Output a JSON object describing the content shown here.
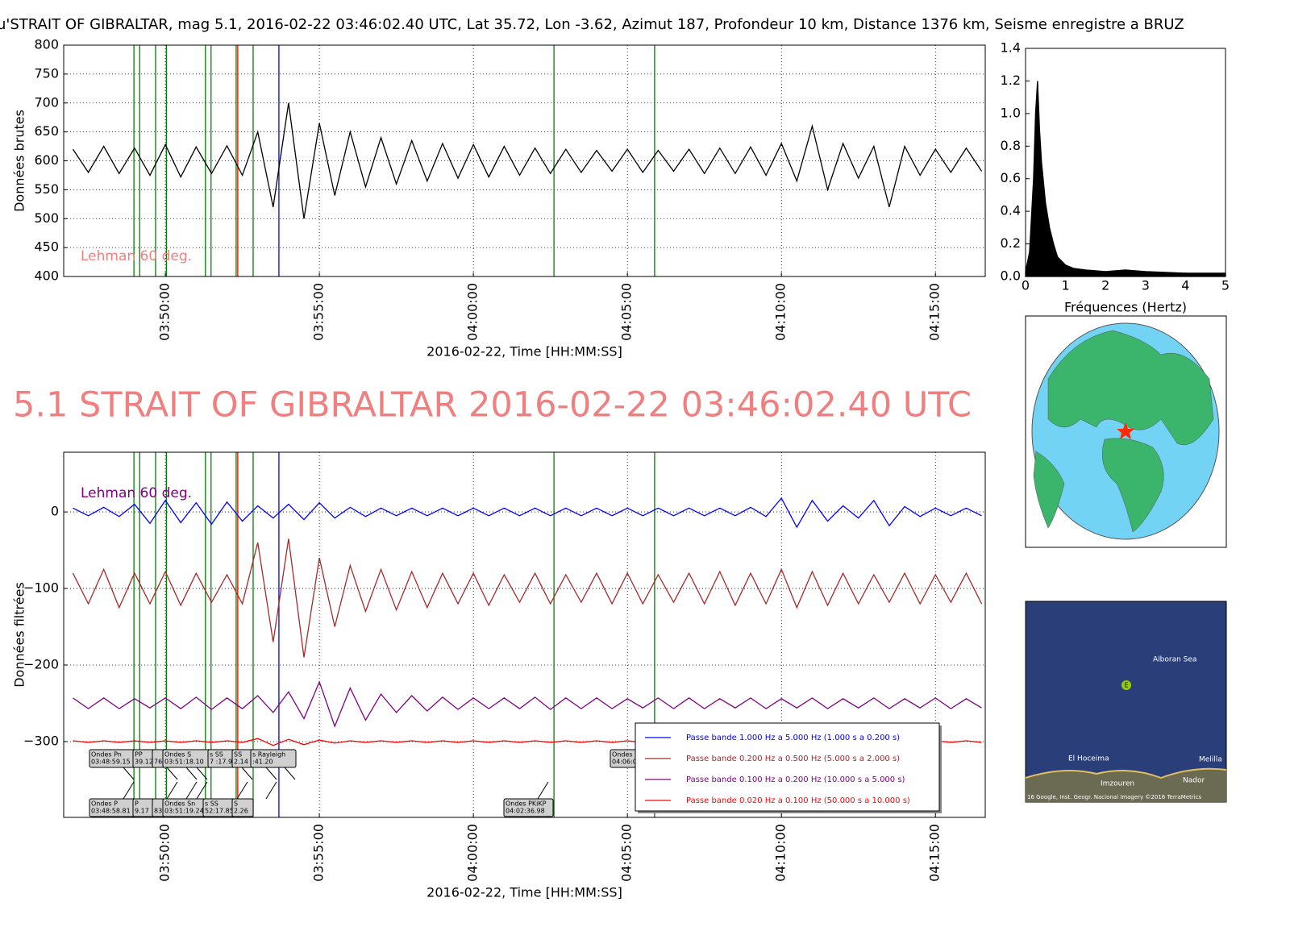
{
  "chart_data": [
    {
      "type": "line",
      "title": "u'STRAIT OF GIBRALTAR, mag 5.1, 2016-02-22 03:46:02.40 UTC, Lat 35.72, Lon -3.62, Azimut 187, Profondeur 10 km, Distance  1376 km, Seisme enregistre a BRUZ",
      "ylabel": "Données brutes",
      "xlabel": "2016-02-22, Time [HH:MM:SS]",
      "note": "Lehman 60 deg.",
      "note_color": "#f08080",
      "xlim": [
        "03:46:42",
        "04:16:37"
      ],
      "xticks": [
        "03:50:00",
        "03:55:00",
        "04:00:00",
        "04:05:00",
        "04:10:00",
        "04:15:00"
      ],
      "ylim": [
        400,
        800
      ],
      "yticks": [
        400,
        450,
        500,
        550,
        600,
        650,
        700,
        750,
        800
      ],
      "grid": true,
      "x": [
        "03:47:00",
        "03:47:30",
        "03:48:00",
        "03:48:30",
        "03:49:00",
        "03:49:30",
        "03:50:00",
        "03:50:30",
        "03:51:00",
        "03:51:30",
        "03:52:00",
        "03:52:30",
        "03:53:00",
        "03:53:30",
        "03:54:00",
        "03:54:30",
        "03:55:00",
        "03:55:30",
        "03:56:00",
        "03:56:30",
        "03:57:00",
        "03:57:30",
        "03:58:00",
        "03:58:30",
        "03:59:00",
        "03:59:30",
        "04:00:00",
        "04:00:30",
        "04:01:00",
        "04:01:30",
        "04:02:00",
        "04:02:30",
        "04:03:00",
        "04:03:30",
        "04:04:00",
        "04:04:30",
        "04:05:00",
        "04:05:30",
        "04:06:00",
        "04:06:30",
        "04:07:00",
        "04:07:30",
        "04:08:00",
        "04:08:30",
        "04:09:00",
        "04:09:30",
        "04:10:00",
        "04:10:30",
        "04:11:00",
        "04:11:30",
        "04:12:00",
        "04:12:30",
        "04:13:00",
        "04:13:30",
        "04:14:00",
        "04:14:30",
        "04:15:00",
        "04:15:30",
        "04:16:00",
        "04:16:30"
      ],
      "series": [
        {
          "color": "#000000",
          "values": [
            620,
            580,
            625,
            578,
            622,
            575,
            628,
            572,
            624,
            578,
            626,
            575,
            650,
            520,
            700,
            500,
            665,
            540,
            650,
            555,
            640,
            560,
            635,
            565,
            630,
            570,
            628,
            572,
            625,
            575,
            622,
            578,
            620,
            580,
            618,
            582,
            620,
            580,
            618,
            582,
            620,
            578,
            622,
            578,
            624,
            575,
            630,
            565,
            660,
            550,
            630,
            570,
            625,
            520,
            625,
            575,
            620,
            580,
            622,
            582
          ]
        }
      ]
    },
    {
      "type": "area",
      "xlabel": "Fréquences (Hertz)",
      "xlim": [
        0,
        5
      ],
      "xticks": [
        0,
        1,
        2,
        3,
        4,
        5
      ],
      "ylim": [
        0,
        1.4
      ],
      "yticks": [
        {
          "value": 0,
          "label": "0.0"
        },
        {
          "value": 0.2,
          "label": "0.2"
        },
        {
          "value": 0.4,
          "label": "0.4"
        },
        {
          "value": 0.6,
          "label": "0.6"
        },
        {
          "value": 0.8,
          "label": "0.8"
        },
        {
          "value": 1,
          "label": "1.0"
        },
        {
          "value": 1.2,
          "label": "1.2"
        },
        {
          "value": 1.4,
          "label": "1.4"
        }
      ],
      "x": [
        0,
        0.1,
        0.2,
        0.25,
        0.3,
        0.35,
        0.4,
        0.5,
        0.6,
        0.7,
        0.8,
        1,
        1.2,
        1.5,
        2,
        2.5,
        3,
        3.5,
        4,
        4.5,
        5
      ],
      "series": [
        {
          "color": "#000000",
          "values": [
            0.03,
            0.15,
            0.6,
            1.0,
            1.2,
            0.9,
            0.7,
            0.45,
            0.3,
            0.2,
            0.12,
            0.07,
            0.05,
            0.04,
            0.03,
            0.04,
            0.03,
            0.025,
            0.02,
            0.02,
            0.02
          ]
        }
      ]
    },
    {
      "type": "line",
      "title": "5.1 STRAIT OF GIBRALTAR 2016-02-22 03:46:02.40 UTC",
      "title_color": "#f08080",
      "ylabel": "Données filtrées",
      "xlabel": "2016-02-22, Time [HH:MM:SS]",
      "note": "Lehman 60 deg.",
      "note_color": "#800080",
      "xlim": [
        "03:46:42",
        "04:16:37"
      ],
      "xticks": [
        "03:50:00",
        "03:55:00",
        "04:00:00",
        "04:05:00",
        "04:10:00",
        "04:15:00"
      ],
      "ylim": [
        -399,
        78
      ],
      "yticks": [
        0,
        {
          "value": -100,
          "label": "−100"
        },
        {
          "value": -200,
          "label": "−200"
        },
        {
          "value": -300,
          "label": "−300"
        }
      ],
      "grid": true,
      "x": [
        "03:47:00",
        "03:47:30",
        "03:48:00",
        "03:48:30",
        "03:49:00",
        "03:49:30",
        "03:50:00",
        "03:50:30",
        "03:51:00",
        "03:51:30",
        "03:52:00",
        "03:52:30",
        "03:53:00",
        "03:53:30",
        "03:54:00",
        "03:54:30",
        "03:55:00",
        "03:55:30",
        "03:56:00",
        "03:56:30",
        "03:57:00",
        "03:57:30",
        "03:58:00",
        "03:58:30",
        "03:59:00",
        "03:59:30",
        "04:00:00",
        "04:00:30",
        "04:01:00",
        "04:01:30",
        "04:02:00",
        "04:02:30",
        "04:03:00",
        "04:03:30",
        "04:04:00",
        "04:04:30",
        "04:05:00",
        "04:05:30",
        "04:06:00",
        "04:06:30",
        "04:07:00",
        "04:07:30",
        "04:08:00",
        "04:08:30",
        "04:09:00",
        "04:09:30",
        "04:10:00",
        "04:10:30",
        "04:11:00",
        "04:11:30",
        "04:12:00",
        "04:12:30",
        "04:13:00",
        "04:13:30",
        "04:14:00",
        "04:14:30",
        "04:15:00",
        "04:15:30",
        "04:16:00",
        "04:16:30"
      ],
      "series": [
        {
          "name": "Passe bande 1.000 Hz a 5.000 Hz (1.000 s a 0.200 s)",
          "color": "#0000ff",
          "values": [
            5,
            -5,
            6,
            -6,
            10,
            -15,
            15,
            -14,
            12,
            -16,
            13,
            -12,
            8,
            -8,
            10,
            -10,
            12,
            -8,
            6,
            -6,
            5,
            -5,
            5,
            -5,
            5,
            -5,
            5,
            -5,
            5,
            -5,
            5,
            -5,
            5,
            -5,
            5,
            -5,
            5,
            -5,
            5,
            -5,
            5,
            -5,
            5,
            -5,
            6,
            -6,
            18,
            -20,
            15,
            -12,
            8,
            -8,
            15,
            -18,
            7,
            -6,
            5,
            -5,
            5,
            -5
          ]
        },
        {
          "name": "Passe bande 0.200 Hz a 0.500 Hz (5.000 s a 2.000 s)",
          "color": "#a52a2a",
          "values": [
            -80,
            -120,
            -75,
            -125,
            -80,
            -120,
            -78,
            -122,
            -80,
            -118,
            -82,
            -120,
            -40,
            -170,
            -35,
            -190,
            -60,
            -150,
            -70,
            -130,
            -75,
            -128,
            -78,
            -125,
            -80,
            -120,
            -80,
            -122,
            -82,
            -118,
            -80,
            -120,
            -82,
            -118,
            -80,
            -120,
            -80,
            -120,
            -82,
            -118,
            -80,
            -120,
            -78,
            -122,
            -80,
            -120,
            -75,
            -125,
            -78,
            -122,
            -80,
            -120,
            -82,
            -118,
            -80,
            -120,
            -82,
            -118,
            -80,
            -120
          ]
        },
        {
          "name": "Passe bande 0.100 Hz a 0.200 Hz (10.000 s a 5.000 s)",
          "color": "#800080",
          "values": [
            -243,
            -257,
            -243,
            -257,
            -244,
            -256,
            -243,
            -257,
            -242,
            -258,
            -243,
            -257,
            -240,
            -262,
            -235,
            -270,
            -222,
            -280,
            -230,
            -272,
            -238,
            -262,
            -240,
            -260,
            -242,
            -258,
            -243,
            -257,
            -243,
            -257,
            -242,
            -258,
            -243,
            -257,
            -243,
            -257,
            -244,
            -256,
            -243,
            -257,
            -243,
            -257,
            -244,
            -256,
            -243,
            -257,
            -244,
            -256,
            -243,
            -257,
            -244,
            -256,
            -243,
            -257,
            -244,
            -256,
            -243,
            -257,
            -244,
            -256
          ]
        },
        {
          "name": "Passe bande 0.020 Hz a 0.100 Hz (50.000 s a 10.000 s)",
          "color": "#ff0000",
          "values": [
            -299,
            -301,
            -299,
            -301,
            -299,
            -301,
            -299,
            -301,
            -299,
            -301,
            -299,
            -301,
            -296,
            -305,
            -297,
            -304,
            -298,
            -302,
            -299,
            -301,
            -299,
            -301,
            -299,
            -301,
            -299,
            -301,
            -299,
            -301,
            -299,
            -301,
            -299,
            -301,
            -299,
            -301,
            -299,
            -301,
            -299,
            -301,
            -299,
            -301,
            -299,
            -301,
            -299,
            -301,
            -299,
            -301,
            -299,
            -301,
            -299,
            -301,
            -299,
            -301,
            -299,
            -301,
            -299,
            -301,
            -299,
            -301,
            -299,
            -301
          ]
        }
      ],
      "markers": [
        {
          "time": "03:48:58.81",
          "color": "#008000"
        },
        {
          "time": "03:49:10",
          "color": "#008000"
        },
        {
          "time": "03:49:41",
          "color": "#008000"
        },
        {
          "time": "03:50:02",
          "color": "#008000"
        },
        {
          "time": "03:51:18.10",
          "color": "#008000"
        },
        {
          "time": "03:51:29",
          "color": "#008000"
        },
        {
          "time": "03:52:17.95",
          "color": "#008000"
        },
        {
          "time": "03:52:21",
          "color": "#ff0000"
        },
        {
          "time": "03:52:51",
          "color": "#008000"
        },
        {
          "time": "03:53:41.20",
          "color": "#0000ff"
        },
        {
          "time": "04:02:36.98",
          "color": "#008000"
        },
        {
          "time": "04:05:53",
          "color": "#008000"
        }
      ],
      "annotations_upper": [
        [
          "Ondes Pn",
          "03:48:59.15"
        ],
        [
          "PP",
          "39.12"
        ],
        [
          "",
          "76"
        ],
        [
          "Ondes S",
          "03:51:18.10"
        ],
        [
          "s SS",
          "7 :17.95"
        ],
        [
          "SS",
          "2.14"
        ],
        [
          "s Rayleigh",
          ":41.20"
        ],
        [
          "Ondes",
          "04:06:0"
        ]
      ],
      "annotations_lower": [
        [
          "Ondes P",
          "03:48:58.81"
        ],
        [
          "P",
          "9.17"
        ],
        [
          "",
          "83"
        ],
        [
          "Ondes Sn",
          "03:51:19.24"
        ],
        [
          "s SS",
          "52:17.85"
        ],
        [
          "S",
          "2.26"
        ],
        [
          "Ondes PKiKP",
          "04:02:36.98"
        ]
      ]
    }
  ],
  "map": {
    "sea": "Alboran Sea",
    "pin": "E",
    "places": [
      "El Hoceima",
      "Melilla",
      "Imzouren",
      "Nador"
    ],
    "credit": "16 Google, Inst. Geogr. Nacional Imagery ©2016 TerraMetrics"
  }
}
